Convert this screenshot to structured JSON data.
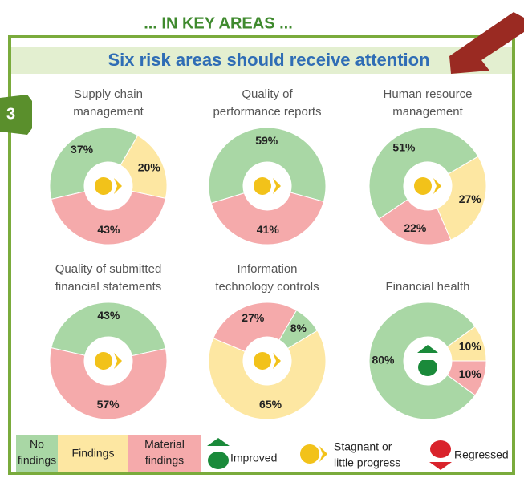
{
  "header": "... IN KEY AREAS ...",
  "badge": "3",
  "title": "Six risk areas should receive attention",
  "chart_data": [
    {
      "type": "donut",
      "title": [
        "Supply chain",
        "management"
      ],
      "values": [
        37,
        20,
        43
      ],
      "value_labels": [
        "37%",
        "20%",
        "43%"
      ],
      "colors": [
        "#a9d7a5",
        "#fde7a2",
        "#f5aaab"
      ],
      "icon": "stagnant"
    },
    {
      "type": "donut",
      "title": [
        "Quality of",
        "performance reports"
      ],
      "values": [
        59,
        41
      ],
      "value_labels": [
        "59%",
        "41%"
      ],
      "colors": [
        "#a9d7a5",
        "#f5aaab"
      ],
      "icon": "stagnant"
    },
    {
      "type": "donut",
      "title": [
        "Human resource",
        "management"
      ],
      "values": [
        51,
        27,
        22
      ],
      "value_labels": [
        "51%",
        "27%",
        "22%"
      ],
      "colors": [
        "#a9d7a5",
        "#fde7a2",
        "#f5aaab"
      ],
      "icon": "stagnant"
    },
    {
      "type": "donut",
      "title": [
        "Quality of submitted",
        "financial statements"
      ],
      "values": [
        43,
        57
      ],
      "value_labels": [
        "43%",
        "57%"
      ],
      "colors": [
        "#a9d7a5",
        "#f5aaab"
      ],
      "icon": "stagnant"
    },
    {
      "type": "donut",
      "title": [
        "Information",
        "technology controls"
      ],
      "values": [
        8,
        65,
        27
      ],
      "value_labels": [
        "8%",
        "65%",
        "27%"
      ],
      "colors": [
        "#a9d7a5",
        "#fde7a2",
        "#f5aaab"
      ],
      "icon": "stagnant"
    },
    {
      "type": "donut",
      "title": [
        "Financial health"
      ],
      "values": [
        10,
        10,
        80
      ],
      "value_labels": [
        "10%",
        "10%",
        "80%"
      ],
      "colors": [
        "#fde7a2",
        "#f5aaab",
        "#a9d7a5"
      ],
      "icon": "improved"
    }
  ],
  "legend": {
    "no_findings": [
      "No",
      "findings"
    ],
    "findings": "Findings",
    "material_findings": [
      "Material",
      "findings"
    ],
    "improved": "Improved",
    "stagnant": [
      "Stagnant   or",
      "little progress"
    ],
    "regressed": "Regressed"
  }
}
